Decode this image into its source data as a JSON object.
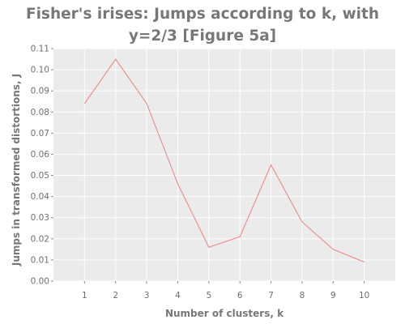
{
  "chart_data": {
    "type": "line",
    "title": "Fisher's irises: Jumps according to k, with y=2/3 [Figure 5a]",
    "xlabel": "Number of clusters, k",
    "ylabel": "Jumps in transformed distortions, J",
    "x": [
      1,
      2,
      3,
      4,
      5,
      6,
      7,
      8,
      9,
      10
    ],
    "series": [
      {
        "values": [
          0.084,
          0.105,
          0.084,
          0.046,
          0.016,
          0.021,
          0.055,
          0.028,
          0.015,
          0.009
        ]
      }
    ],
    "xticks": [
      "1",
      "2",
      "3",
      "4",
      "5",
      "6",
      "7",
      "8",
      "9",
      "10"
    ],
    "yticks": [
      "0.00",
      "0.01",
      "0.02",
      "0.03",
      "0.04",
      "0.05",
      "0.06",
      "0.07",
      "0.08",
      "0.09",
      "0.10",
      "0.11"
    ],
    "xlim": [
      0,
      11
    ],
    "ylim": [
      0,
      0.11
    ],
    "grid": true,
    "legend": "none",
    "colors": {
      "line": "#f08080",
      "panel": "#ebebeb",
      "grid": "#ffffff",
      "text": "#777777"
    }
  }
}
